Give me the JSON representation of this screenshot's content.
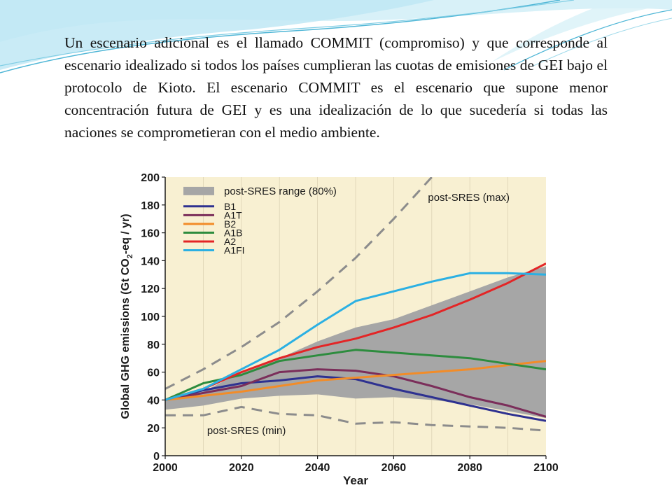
{
  "slide": {
    "paragraph": "Un escenario adicional es el llamado COMMIT (compromiso) y que corresponde al escenario idealizado si todos los países cumplieran las cuotas de emisiones de GEI bajo el protocolo de Kioto. El escenario COMMIT es el escenario que supone menor concentración futura de GEI y es una idealización de lo que sucedería si todas las naciones se comprometieran con el medio ambiente."
  },
  "colors": {
    "plot_background": "#f8f0d2",
    "range_fill": "#a6a6a6",
    "dashed_bounds": "#8c8c8c",
    "wave_light": "#bfe8f4",
    "wave_dark": "#4fb6d6"
  },
  "chart_data": {
    "type": "line",
    "title": "",
    "xlabel": "Year",
    "ylabel": "Global GHG emissions (Gt CO2-eq / yr)",
    "ylabel_parts": {
      "before": "Global GHG emissions (Gt CO",
      "subscript": "2",
      "after": "-eq / yr)"
    },
    "xlim": [
      2000,
      2100
    ],
    "ylim": [
      0,
      200
    ],
    "xticks": [
      2000,
      2020,
      2040,
      2060,
      2080,
      2100
    ],
    "yticks": [
      0,
      20,
      40,
      60,
      80,
      100,
      120,
      140,
      160,
      180,
      200
    ],
    "grid": "vertical",
    "legend_position": "top-left",
    "range": {
      "name": "post-SRES range (80%)",
      "x": [
        2000,
        2010,
        2020,
        2030,
        2040,
        2050,
        2060,
        2070,
        2080,
        2090,
        2100
      ],
      "upper": [
        40,
        46,
        60,
        70,
        82,
        92,
        98,
        108,
        118,
        128,
        136
      ],
      "lower": [
        33,
        36,
        41,
        43,
        44,
        41,
        42,
        40,
        37,
        32,
        27
      ]
    },
    "bounds": [
      {
        "name": "post-SRES (max)",
        "x": [
          2000,
          2010,
          2020,
          2030,
          2040,
          2050,
          2060,
          2070
        ],
        "values": [
          48,
          62,
          78,
          96,
          118,
          142,
          170,
          200
        ]
      },
      {
        "name": "post-SRES (min)",
        "x": [
          2000,
          2010,
          2020,
          2030,
          2040,
          2050,
          2060,
          2070,
          2080,
          2090,
          2100
        ],
        "values": [
          29,
          29,
          35,
          30,
          29,
          23,
          24,
          22,
          21,
          20,
          18
        ]
      }
    ],
    "series": [
      {
        "name": "B1",
        "color": "#2e3190",
        "x": [
          2000,
          2010,
          2020,
          2030,
          2040,
          2050,
          2060,
          2070,
          2080,
          2090,
          2100
        ],
        "values": [
          40,
          47,
          52,
          54,
          57,
          55,
          48,
          42,
          36,
          30,
          25
        ]
      },
      {
        "name": "A1T",
        "color": "#7b2e5a",
        "x": [
          2000,
          2010,
          2020,
          2030,
          2040,
          2050,
          2060,
          2070,
          2080,
          2090,
          2100
        ],
        "values": [
          40,
          45,
          50,
          60,
          62,
          61,
          57,
          50,
          42,
          36,
          28
        ]
      },
      {
        "name": "B2",
        "color": "#f28c28",
        "x": [
          2000,
          2010,
          2020,
          2030,
          2040,
          2050,
          2060,
          2070,
          2080,
          2090,
          2100
        ],
        "values": [
          40,
          43,
          46,
          50,
          54,
          56,
          58,
          60,
          62,
          65,
          68
        ]
      },
      {
        "name": "A1B",
        "color": "#2d8c3e",
        "x": [
          2000,
          2010,
          2020,
          2030,
          2040,
          2050,
          2060,
          2070,
          2080,
          2090,
          2100
        ],
        "values": [
          40,
          52,
          58,
          68,
          72,
          76,
          74,
          72,
          70,
          66,
          62
        ]
      },
      {
        "name": "A2",
        "color": "#e32526",
        "x": [
          2000,
          2010,
          2020,
          2030,
          2040,
          2050,
          2060,
          2070,
          2080,
          2090,
          2100
        ],
        "values": [
          40,
          48,
          60,
          70,
          78,
          84,
          92,
          101,
          112,
          124,
          138
        ]
      },
      {
        "name": "A1FI",
        "color": "#2bb0e3",
        "x": [
          2000,
          2010,
          2020,
          2030,
          2040,
          2050,
          2060,
          2070,
          2080,
          2090,
          2100
        ],
        "values": [
          40,
          48,
          62,
          76,
          94,
          111,
          118,
          125,
          131,
          131,
          130
        ]
      }
    ]
  }
}
